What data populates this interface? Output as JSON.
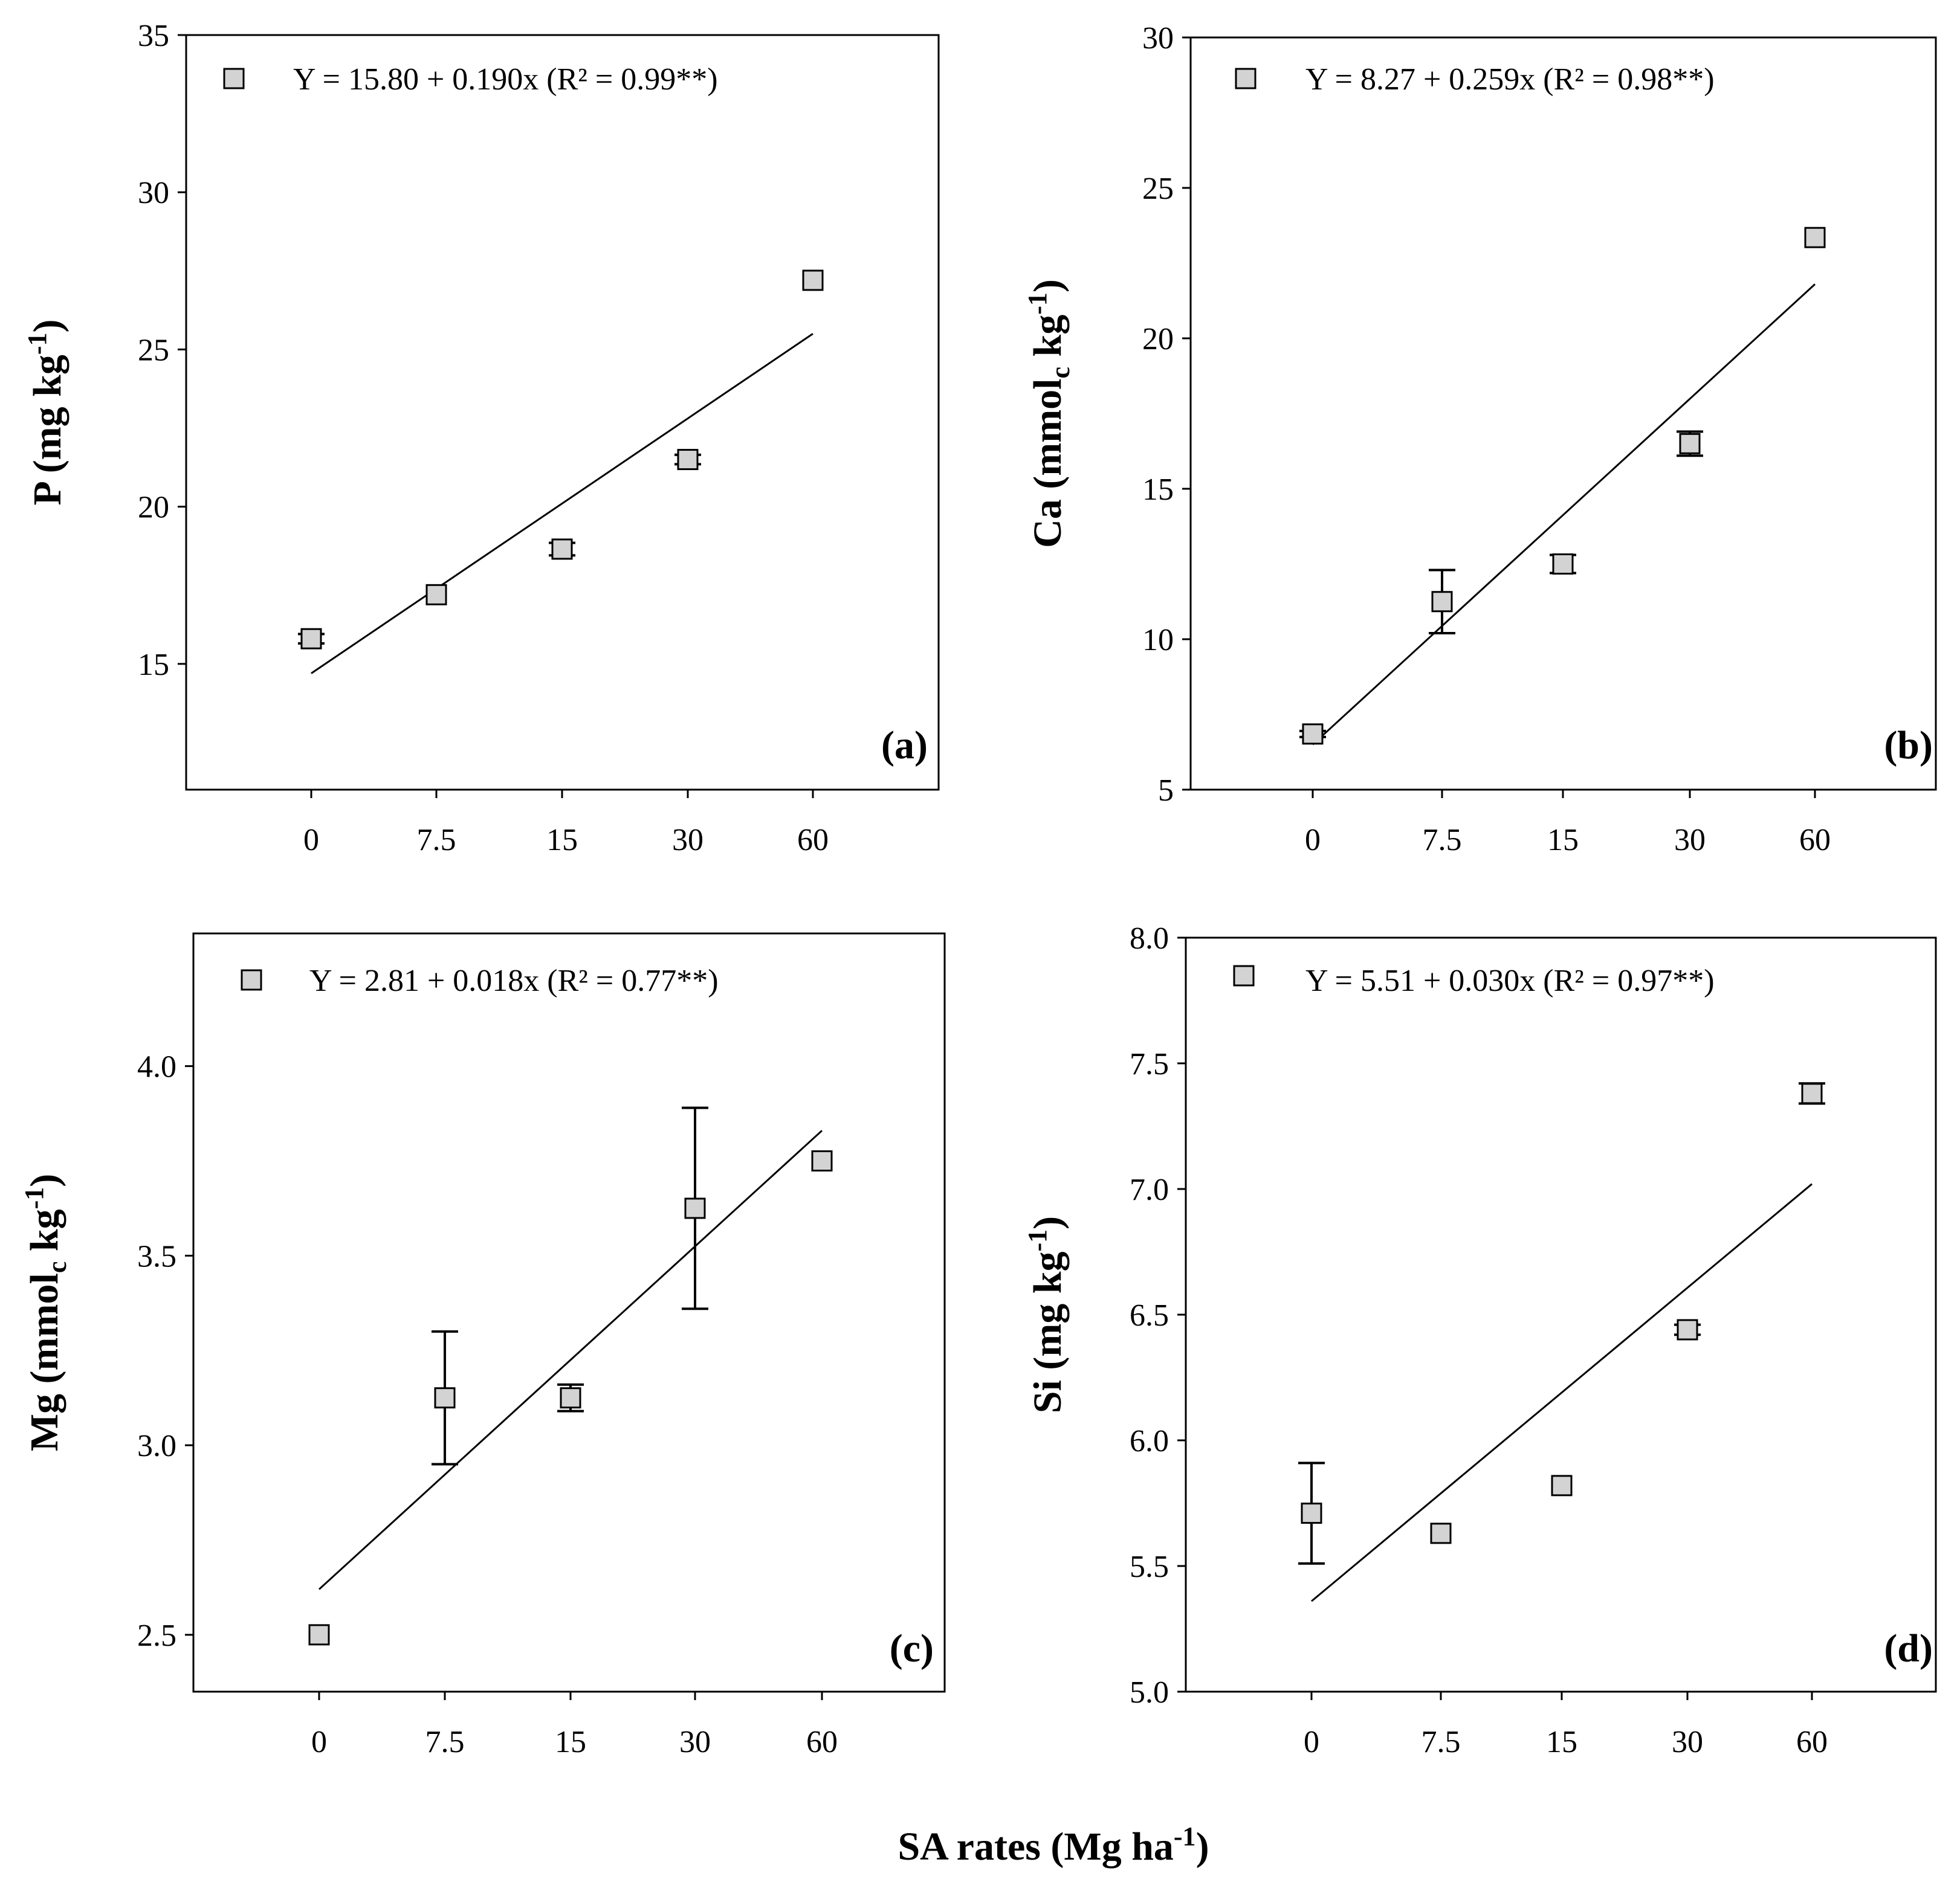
{
  "chart_data": [
    {
      "panel": "(a)",
      "type": "scatter",
      "x_categories": [
        "0",
        "7.5",
        "15",
        "30",
        "60"
      ],
      "y_ticks": [
        "15",
        "20",
        "25",
        "30",
        "35"
      ],
      "ylim": [
        11,
        35
      ],
      "ylabel_main": "P (mg kg",
      "ylabel_sup": "-1",
      "ylabel_sub": "",
      "ylabel_end": ")",
      "equation": "Y = 15.80 + 0.190x (R² = 0.99**)",
      "points": [
        {
          "x": "0",
          "y": 15.8,
          "err": 0.15
        },
        {
          "x": "7.5",
          "y": 17.2,
          "err": 0
        },
        {
          "x": "15",
          "y": 18.65,
          "err": 0.2
        },
        {
          "x": "30",
          "y": 21.5,
          "err": 0.15
        },
        {
          "x": "60",
          "y": 27.2,
          "err": 0
        }
      ],
      "fit": {
        "y_start": 14.7,
        "y_end": 25.5
      }
    },
    {
      "panel": "(b)",
      "type": "scatter",
      "x_categories": [
        "0",
        "7.5",
        "15",
        "30",
        "60"
      ],
      "y_ticks": [
        "5",
        "10",
        "15",
        "20",
        "25",
        "30"
      ],
      "ylim": [
        5,
        30
      ],
      "ylabel_main": "Ca (mmol",
      "ylabel_sup": "-1",
      "ylabel_sub": "c",
      "ylabel_end": ")",
      "equation": "Y = 8.27 + 0.259x (R² = 0.98**)",
      "points": [
        {
          "x": "0",
          "y": 6.85,
          "err": 0.1
        },
        {
          "x": "7.5",
          "y": 11.25,
          "err": 1.05
        },
        {
          "x": "15",
          "y": 12.5,
          "err": 0.3
        },
        {
          "x": "30",
          "y": 16.5,
          "err": 0.4
        },
        {
          "x": "60",
          "y": 23.35,
          "err": 0
        }
      ],
      "fit": {
        "y_start": 6.5,
        "y_end": 21.8
      }
    },
    {
      "panel": "(c)",
      "type": "scatter",
      "x_categories": [
        "0",
        "7.5",
        "15",
        "30",
        "60"
      ],
      "y_ticks": [
        "2.5",
        "3.0",
        "3.5",
        "4.0"
      ],
      "ylim": [
        2.35,
        4.35
      ],
      "ylabel_main": "Mg (mmol",
      "ylabel_sup": "-1",
      "ylabel_sub": "c",
      "ylabel_end": ")",
      "equation": "Y = 2.81 + 0.018x (R² = 0.77**)",
      "points": [
        {
          "x": "0",
          "y": 2.5,
          "err": 0
        },
        {
          "x": "7.5",
          "y": 3.125,
          "err": 0.175
        },
        {
          "x": "15",
          "y": 3.125,
          "err": 0.035
        },
        {
          "x": "30",
          "y": 3.625,
          "err": 0.265
        },
        {
          "x": "60",
          "y": 3.75,
          "err": 0
        }
      ],
      "fit": {
        "y_start": 2.62,
        "y_end": 3.83
      }
    },
    {
      "panel": "(d)",
      "type": "scatter",
      "x_categories": [
        "0",
        "7.5",
        "15",
        "30",
        "60"
      ],
      "y_ticks": [
        "5.0",
        "5.5",
        "6.0",
        "6.5",
        "7.0",
        "7.5",
        "8.0"
      ],
      "ylim": [
        5.0,
        8.0
      ],
      "ylabel_main": "Si (mg kg",
      "ylabel_sup": "-1",
      "ylabel_sub": "",
      "ylabel_end": ")",
      "equation": "Y = 5.51 + 0.030x (R² = 0.97**)",
      "points": [
        {
          "x": "0",
          "y": 5.71,
          "err": 0.2
        },
        {
          "x": "7.5",
          "y": 5.63,
          "err": 0
        },
        {
          "x": "15",
          "y": 5.82,
          "err": 0
        },
        {
          "x": "30",
          "y": 6.44,
          "err": 0.02
        },
        {
          "x": "60",
          "y": 7.38,
          "err": 0.04
        }
      ],
      "fit": {
        "y_start": 5.36,
        "y_end": 7.02
      }
    }
  ],
  "shared_xlabel": {
    "main": "SA rates (Mg ha",
    "sup": "-1",
    "end": ")"
  },
  "marker_color": "#d3d3d3"
}
